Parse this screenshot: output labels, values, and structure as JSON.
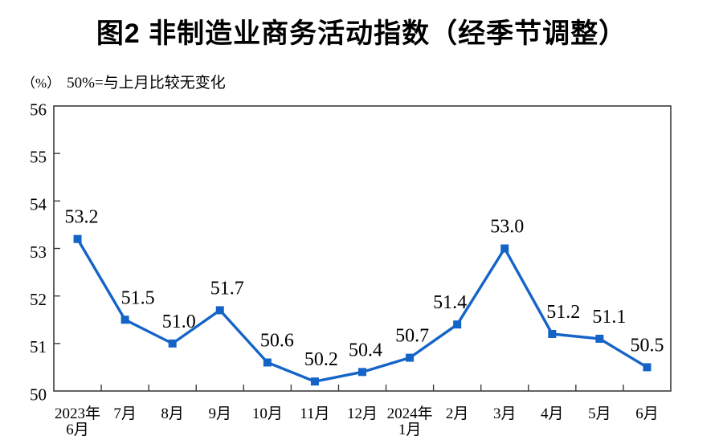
{
  "chart_data": {
    "type": "line",
    "title": "图2 非制造业商务活动指数（经季节调整）",
    "unit_label": "（%）",
    "annotation": "50%=与上月比较无变化",
    "categories": [
      [
        "2023年",
        "6月"
      ],
      [
        "7月"
      ],
      [
        "8月"
      ],
      [
        "9月"
      ],
      [
        "10月"
      ],
      [
        "11月"
      ],
      [
        "12月"
      ],
      [
        "2024年",
        "1月"
      ],
      [
        "2月"
      ],
      [
        "3月"
      ],
      [
        "4月"
      ],
      [
        "5月"
      ],
      [
        "6月"
      ]
    ],
    "values": [
      53.2,
      51.5,
      51.0,
      51.7,
      50.6,
      50.2,
      50.4,
      50.7,
      51.4,
      53.0,
      51.2,
      51.1,
      50.5
    ],
    "point_labels": [
      "53.2",
      "51.5",
      "51.0",
      "51.7",
      "50.6",
      "50.2",
      "50.4",
      "50.7",
      "51.4",
      "53.0",
      "51.2",
      "51.1",
      "50.5"
    ],
    "ylim": [
      50,
      56
    ],
    "yticks": [
      50,
      51,
      52,
      53,
      54,
      55,
      56
    ],
    "xlabel": "",
    "ylabel": "",
    "grid": "off",
    "legend": "none",
    "line_color": "#1464C8",
    "marker": "square",
    "layout": {
      "label_dx": [
        5,
        16,
        8,
        9,
        12,
        8,
        4,
        3,
        -9,
        3,
        14,
        12,
        0
      ]
    }
  }
}
